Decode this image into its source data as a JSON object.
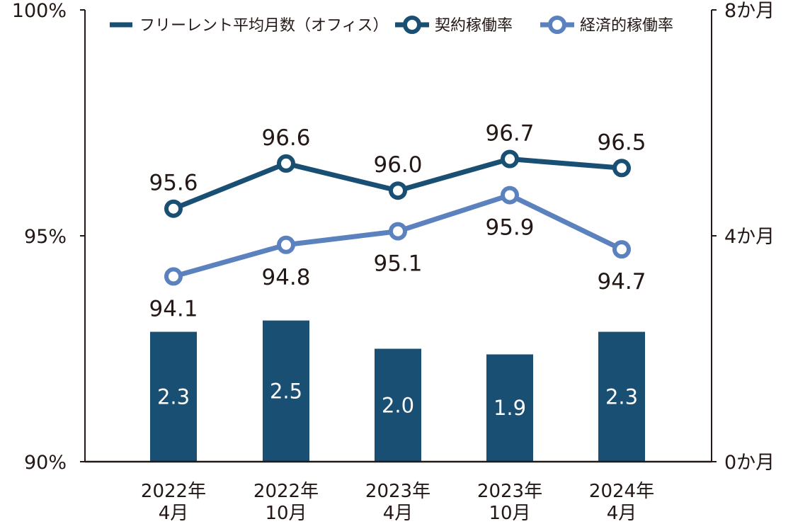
{
  "chart_data": {
    "type": "bar+line",
    "categories": [
      {
        "line1": "2022年",
        "line2": "4月"
      },
      {
        "line1": "2022年",
        "line2": "10月"
      },
      {
        "line1": "2023年",
        "line2": "4月"
      },
      {
        "line1": "2023年",
        "line2": "10月"
      },
      {
        "line1": "2024年",
        "line2": "4月"
      }
    ],
    "series": [
      {
        "name": "フリーレント平均月数（オフィス）",
        "type": "bar",
        "axis": "right",
        "color": "#1a4f74",
        "values": [
          2.3,
          2.5,
          2.0,
          1.9,
          2.3
        ],
        "labels": [
          "2.3",
          "2.5",
          "2.0",
          "1.9",
          "2.3"
        ]
      },
      {
        "name": "契約稼働率",
        "type": "line",
        "axis": "left",
        "color": "#1a4f74",
        "values": [
          95.6,
          96.6,
          96.0,
          96.7,
          96.5
        ],
        "labels": [
          "95.6",
          "96.6",
          "96.0",
          "96.7",
          "96.5"
        ],
        "label_position": "above"
      },
      {
        "name": "経済的稼働率",
        "type": "line",
        "axis": "left",
        "color": "#5b82be",
        "values": [
          94.1,
          94.8,
          95.1,
          95.9,
          94.7
        ],
        "labels": [
          "94.1",
          "94.8",
          "95.1",
          "95.9",
          "94.7"
        ],
        "label_position": "below"
      }
    ],
    "y_left": {
      "range": [
        90,
        100
      ],
      "ticks": [
        100,
        95,
        90
      ],
      "tick_labels": [
        "100%",
        "95%",
        "90%"
      ]
    },
    "y_right": {
      "range": [
        0,
        8
      ],
      "ticks": [
        8,
        4,
        0
      ],
      "tick_labels": [
        "8か月",
        "4か月",
        "0か月"
      ]
    },
    "legend": {
      "placement": "top"
    },
    "grid": false
  }
}
